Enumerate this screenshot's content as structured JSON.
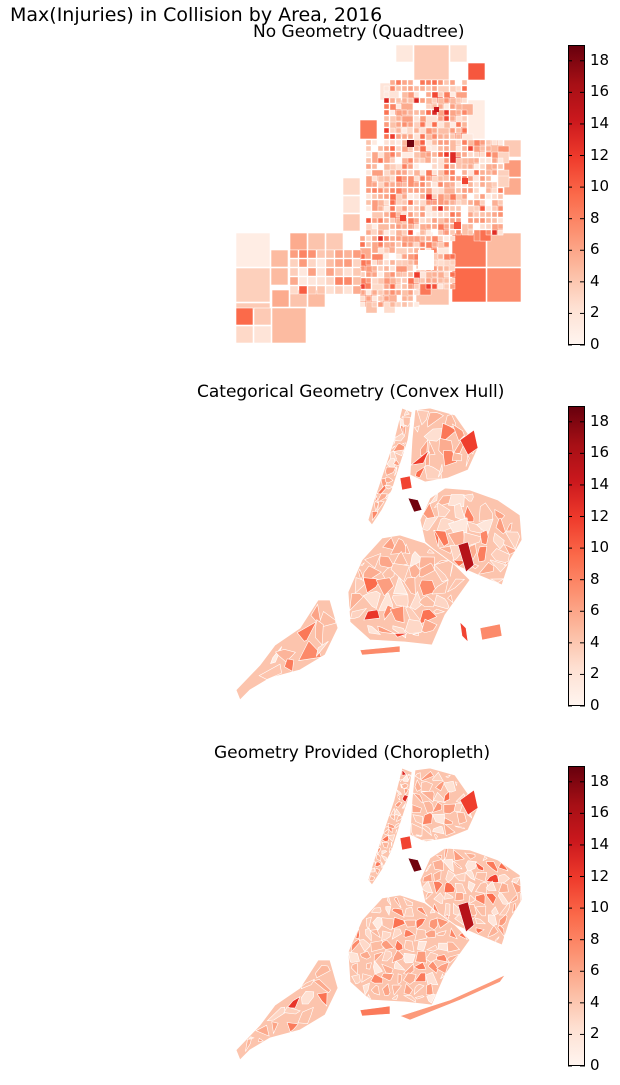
{
  "suptitle": "Max(Injuries) in Collision by Area, 2016",
  "panels": [
    {
      "title": "No Geometry (Quadtree)"
    },
    {
      "title": "Categorical Geometry (Convex Hull)"
    },
    {
      "title": "Geometry Provided (Choropleth)"
    }
  ],
  "colorbar": {
    "ticks": [
      "0",
      "2",
      "4",
      "6",
      "8",
      "10",
      "12",
      "14",
      "16",
      "18"
    ],
    "min": 0,
    "max": 19,
    "colormap": [
      "#fff5f0",
      "#fee0d2",
      "#fcbba1",
      "#fc9272",
      "#fb6a4a",
      "#ef3b2c",
      "#cb181d",
      "#a50f15",
      "#67000d"
    ]
  }
}
